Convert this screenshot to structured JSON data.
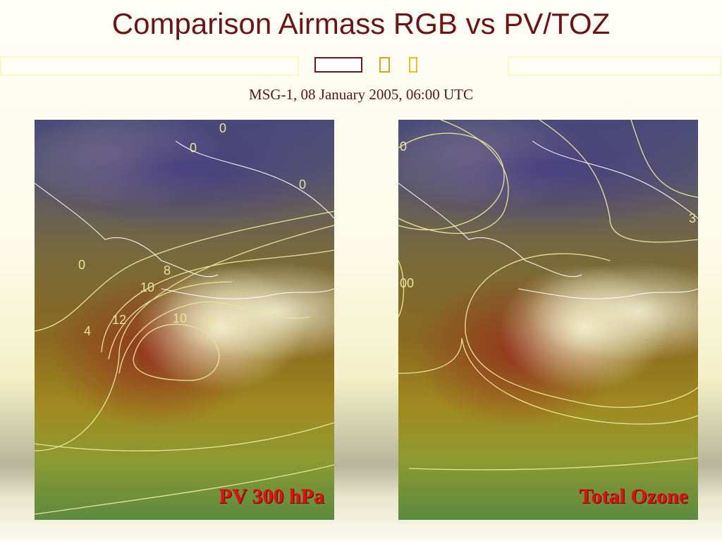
{
  "title": "Comparison Airmass RGB vs PV/TOZ",
  "subtitle": "MSG-1, 08 January 2005, 06:00 UTC",
  "colors": {
    "title": "#6e1414",
    "panel_label": "#e01010",
    "contour": "#e8e49a"
  },
  "panels": [
    {
      "label": "PV 300 hPa",
      "contour_labels": [
        "0",
        "0",
        "0",
        "0",
        "8",
        "10",
        "12",
        "4",
        "10",
        "8"
      ]
    },
    {
      "label": "Total Ozone",
      "contour_labels": [
        "0",
        "00",
        "3"
      ]
    }
  ]
}
